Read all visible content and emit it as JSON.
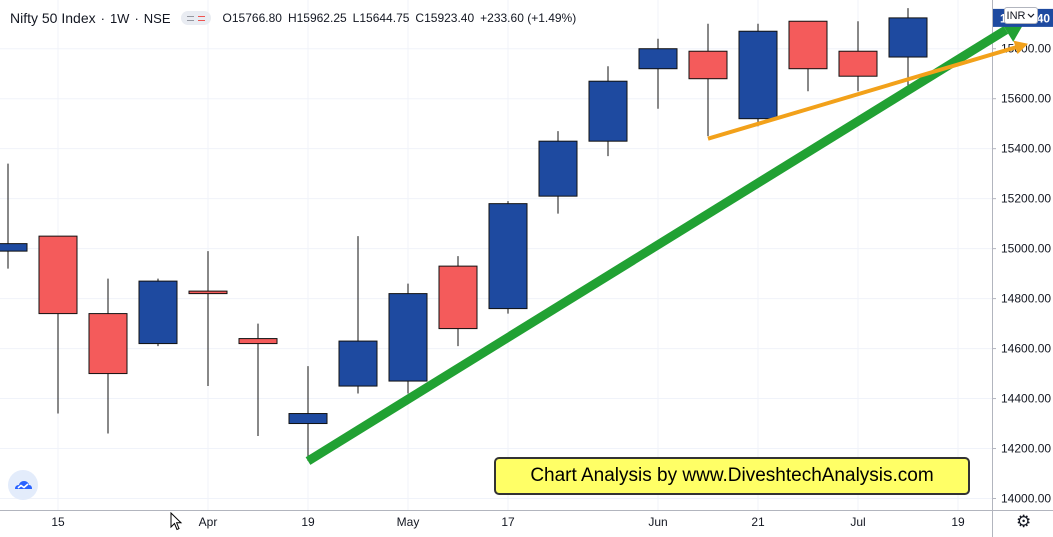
{
  "header": {
    "symbol": "Nifty 50 Index",
    "interval": "1W",
    "exchange": "NSE",
    "open_label": "O",
    "open": "15766.80",
    "high_label": "H",
    "high": "15962.25",
    "low_label": "L",
    "low": "15644.75",
    "close_label": "C",
    "close": "15923.40",
    "change": "+233.60 (+1.49%)"
  },
  "currency": "INR",
  "last_price_label": "15923.40",
  "banner_text": "Chart Analysis by www.DiveshtechAnalysis.com",
  "icons": {
    "logo": "chart-logo-icon",
    "settings": "gear-icon",
    "cursor": "mouse-cursor-icon",
    "currency_caret": "chevron-down-icon"
  },
  "colors": {
    "up": "#1e4aa0",
    "down": "#f45b5b",
    "trend_green": "#21a133",
    "trend_orange": "#f2a11a",
    "last_price_bg": "#1e4aa0",
    "banner_bg": "#ffff66"
  },
  "chart_data": {
    "type": "candlestick",
    "y_ticks": [
      14000,
      14200,
      14400,
      14600,
      14800,
      15000,
      15200,
      15400,
      15600,
      15800
    ],
    "y_tick_labels": [
      "14000.00",
      "14200.00",
      "14400.00",
      "14600.00",
      "14800.00",
      "15000.00",
      "15200.00",
      "15400.00",
      "15600.00",
      "15800.00"
    ],
    "ylim": [
      13970,
      15995
    ],
    "x_labels": [
      "15",
      "Apr",
      "19",
      "May",
      "17",
      "Jun",
      "21",
      "Jul",
      "19"
    ],
    "x_label_slots": [
      1,
      4,
      6,
      8,
      10,
      13,
      15,
      17,
      19
    ],
    "grid": true,
    "candles": [
      {
        "slot": 0,
        "open": 14990,
        "high": 15340,
        "low": 14920,
        "close": 15020
      },
      {
        "slot": 1,
        "open": 15050,
        "high": 15050,
        "low": 14340,
        "close": 14740
      },
      {
        "slot": 2,
        "open": 14740,
        "high": 14880,
        "low": 14260,
        "close": 14500
      },
      {
        "slot": 3,
        "open": 14620,
        "high": 14880,
        "low": 14610,
        "close": 14870
      },
      {
        "slot": 4,
        "open": 14830,
        "high": 14990,
        "low": 14450,
        "close": 14820
      },
      {
        "slot": 5,
        "open": 14640,
        "high": 14700,
        "low": 14250,
        "close": 14620
      },
      {
        "slot": 6,
        "open": 14300,
        "high": 14530,
        "low": 14150,
        "close": 14340
      },
      {
        "slot": 7,
        "open": 14450,
        "high": 15050,
        "low": 14420,
        "close": 14630
      },
      {
        "slot": 8,
        "open": 14470,
        "high": 14860,
        "low": 14420,
        "close": 14820
      },
      {
        "slot": 9,
        "open": 14930,
        "high": 14970,
        "low": 14610,
        "close": 14680
      },
      {
        "slot": 10,
        "open": 14760,
        "high": 15190,
        "low": 14740,
        "close": 15180
      },
      {
        "slot": 11,
        "open": 15210,
        "high": 15470,
        "low": 15140,
        "close": 15430
      },
      {
        "slot": 12,
        "open": 15430,
        "high": 15730,
        "low": 15370,
        "close": 15670
      },
      {
        "slot": 13,
        "open": 15720,
        "high": 15840,
        "low": 15560,
        "close": 15800
      },
      {
        "slot": 14,
        "open": 15790,
        "high": 15900,
        "low": 15450,
        "close": 15680
      },
      {
        "slot": 15,
        "open": 15520,
        "high": 15900,
        "low": 15490,
        "close": 15870
      },
      {
        "slot": 16,
        "open": 15910,
        "high": 15910,
        "low": 15630,
        "close": 15720
      },
      {
        "slot": 17,
        "open": 15790,
        "high": 15910,
        "low": 15630,
        "close": 15690
      },
      {
        "slot": 18,
        "open": 15766.8,
        "high": 15962.25,
        "low": 15644.75,
        "close": 15923.4
      }
    ],
    "trendlines": [
      {
        "name": "green",
        "from": {
          "slot": 6,
          "price": 14150
        },
        "to": {
          "slot": 20.4,
          "price": 15930
        },
        "arrow": true
      },
      {
        "name": "orange",
        "from": {
          "slot": 14,
          "price": 15440
        },
        "to": {
          "slot": 20.4,
          "price": 15820
        },
        "arrow": true
      }
    ]
  }
}
